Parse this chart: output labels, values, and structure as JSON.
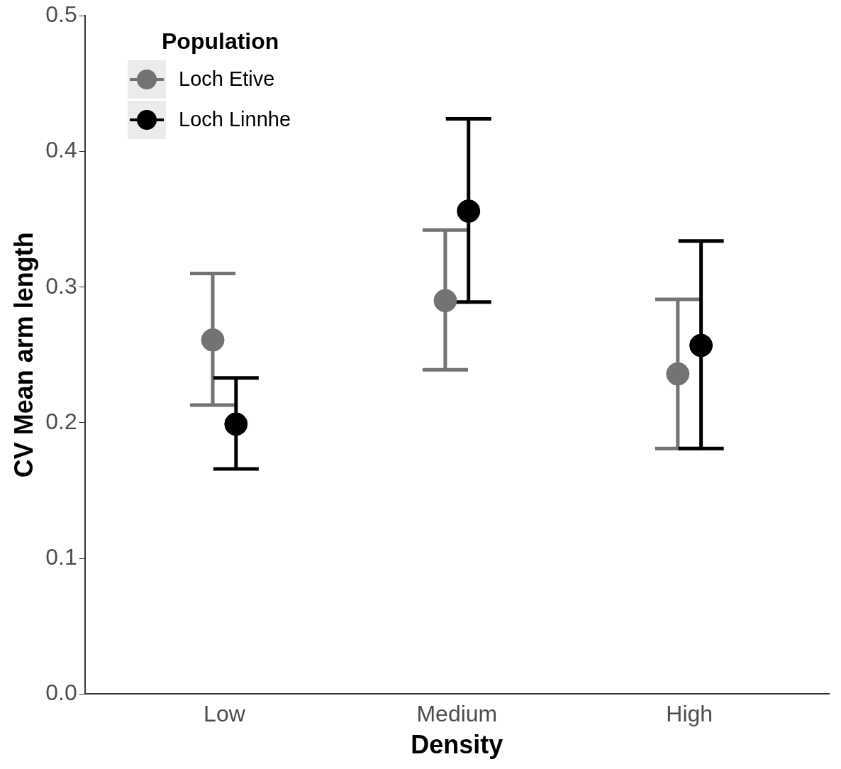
{
  "chart_data": {
    "type": "scatter",
    "xlabel": "Density",
    "ylabel": "CV Mean arm length",
    "legend_title": "Population",
    "legend": "top left",
    "marker": "circle",
    "grid": false,
    "categories": [
      "Low",
      "Medium",
      "High"
    ],
    "ylim": [
      0,
      0.5
    ],
    "yticks": [
      {
        "value": 0,
        "label": "0.0"
      },
      0.1,
      0.2,
      0.3,
      0.4,
      0.5
    ],
    "series": [
      {
        "name": "Loch Etive",
        "color": "#737373",
        "values": [
          0.261,
          0.29,
          0.236
        ],
        "errors": [
          [
            0.213,
            0.31
          ],
          [
            0.239,
            0.342
          ],
          [
            0.181,
            0.291
          ]
        ]
      },
      {
        "name": "Loch Linnhe",
        "color": "#000000",
        "values": [
          0.199,
          0.356,
          0.257
        ],
        "errors": [
          [
            0.166,
            0.233
          ],
          [
            0.289,
            0.424
          ],
          [
            0.181,
            0.334
          ]
        ]
      }
    ]
  }
}
